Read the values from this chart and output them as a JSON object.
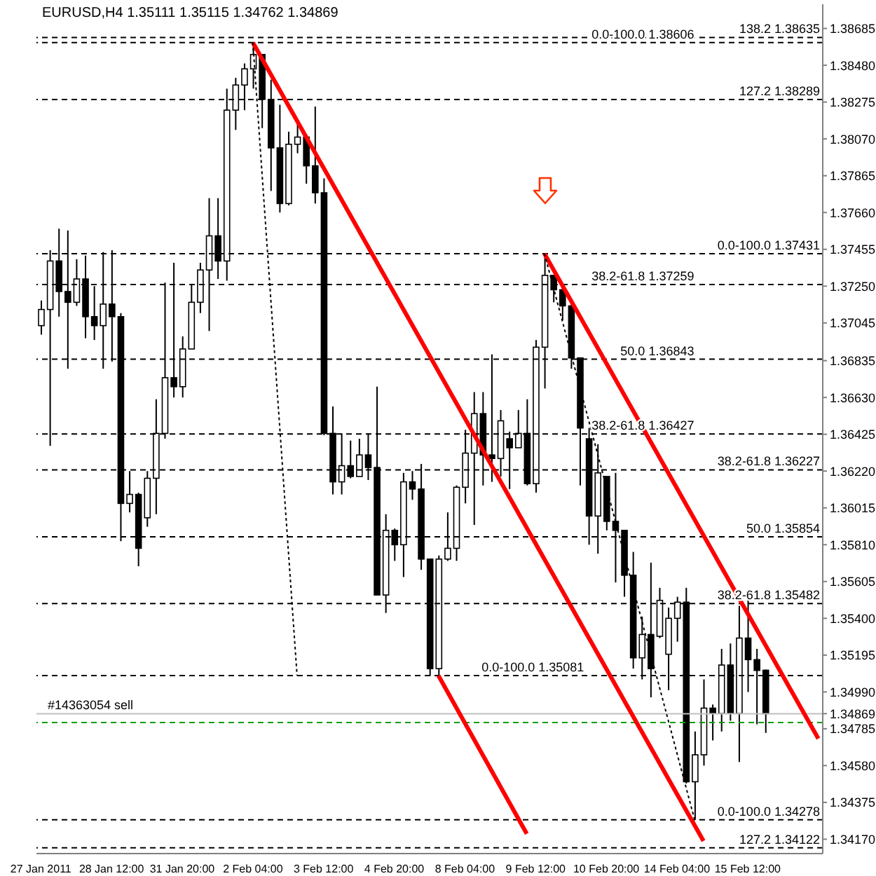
{
  "chart_data": {
    "type": "candlestick",
    "title": "EURUSD,H4 1.35111 1.35115 1.34762 1.34869",
    "color": "#000000",
    "categories": [
      "27 Jan 2011",
      null,
      null,
      null,
      null,
      null,
      null,
      null,
      "28 Jan 12:00",
      null,
      null,
      null,
      null,
      null,
      null,
      null,
      "31 Jan 20:00",
      null,
      null,
      null,
      null,
      null,
      null,
      null,
      "2 Feb 04:00",
      null,
      null,
      null,
      null,
      null,
      null,
      null,
      "3 Feb 12:00",
      null,
      null,
      null,
      null,
      null,
      null,
      null,
      "4 Feb 20:00",
      null,
      null,
      null,
      null,
      null,
      null,
      null,
      "8 Feb 04:00",
      null,
      null,
      null,
      null,
      null,
      null,
      null,
      "9 Feb 12:00",
      null,
      null,
      null,
      null,
      null,
      null,
      null,
      "10 Feb 20:00",
      null,
      null,
      null,
      null,
      null,
      null,
      null,
      "14 Feb 04:00",
      null,
      null,
      null,
      null,
      null,
      null,
      null,
      "15 Feb 12:00",
      null,
      null,
      null,
      null,
      null,
      null,
      null,
      null
    ],
    "ohlc": [
      [
        1.3703,
        1.3717,
        1.3698,
        1.3712
      ],
      [
        1.3712,
        1.3745,
        1.3636,
        1.3739
      ],
      [
        1.3739,
        1.3757,
        1.3708,
        1.3722
      ],
      [
        1.3722,
        1.3756,
        1.3679,
        1.3716
      ],
      [
        1.3716,
        1.374,
        1.3714,
        1.3729
      ],
      [
        1.3729,
        1.3742,
        1.3696,
        1.3708
      ],
      [
        1.3708,
        1.3725,
        1.3695,
        1.3703
      ],
      [
        1.3703,
        1.3744,
        1.3679,
        1.3715
      ],
      [
        1.3715,
        1.3745,
        1.3683,
        1.3708
      ],
      [
        1.3708,
        1.371,
        1.3583,
        1.3604
      ],
      [
        1.3604,
        1.3622,
        1.3599,
        1.3609
      ],
      [
        1.3609,
        1.361,
        1.3569,
        1.3579
      ],
      [
        1.3596,
        1.3622,
        1.3591,
        1.3618
      ],
      [
        1.3618,
        1.3662,
        1.3598,
        1.3643
      ],
      [
        1.3643,
        1.3727,
        1.364,
        1.3674
      ],
      [
        1.3674,
        1.3738,
        1.3663,
        1.3669
      ],
      [
        1.3669,
        1.3697,
        1.3663,
        1.369
      ],
      [
        1.369,
        1.3726,
        1.369,
        1.3716
      ],
      [
        1.3716,
        1.3738,
        1.371,
        1.3734
      ],
      [
        1.3734,
        1.3774,
        1.37,
        1.3753
      ],
      [
        1.3753,
        1.3774,
        1.3729,
        1.3739
      ],
      [
        1.3739,
        1.3835,
        1.3728,
        1.3823
      ],
      [
        1.3823,
        1.3841,
        1.3812,
        1.3837
      ],
      [
        1.3837,
        1.3849,
        1.3823,
        1.3846
      ],
      [
        1.3846,
        1.38606,
        1.3835,
        1.3854
      ],
      [
        1.3854,
        1.3854,
        1.3813,
        1.3829
      ],
      [
        1.3829,
        1.384,
        1.3778,
        1.3802
      ],
      [
        1.3802,
        1.3826,
        1.3766,
        1.3771
      ],
      [
        1.3771,
        1.3811,
        1.377,
        1.3804
      ],
      [
        1.3804,
        1.3816,
        1.3799,
        1.3808
      ],
      [
        1.3808,
        1.3809,
        1.3782,
        1.3792
      ],
      [
        1.3792,
        1.3825,
        1.3771,
        1.3777
      ],
      [
        1.3777,
        1.3785,
        1.3642,
        1.3643
      ],
      [
        1.3643,
        1.3658,
        1.3609,
        1.3616
      ],
      [
        1.3616,
        1.3643,
        1.3609,
        1.3625
      ],
      [
        1.3625,
        1.3639,
        1.3618,
        1.3619
      ],
      [
        1.3619,
        1.364,
        1.3619,
        1.3631
      ],
      [
        1.3631,
        1.3643,
        1.3617,
        1.3624
      ],
      [
        1.3624,
        1.3669,
        1.3553,
        1.3553
      ],
      [
        1.3553,
        1.3598,
        1.3543,
        1.3589
      ],
      [
        1.3589,
        1.359,
        1.3572,
        1.3581
      ],
      [
        1.3581,
        1.3621,
        1.3563,
        1.3616
      ],
      [
        1.3616,
        1.3622,
        1.3606,
        1.3612
      ],
      [
        1.3612,
        1.3626,
        1.3567,
        1.3573
      ],
      [
        1.3573,
        1.3573,
        1.3508,
        1.3512
      ],
      [
        1.3512,
        1.3575,
        1.35081,
        1.3573
      ],
      [
        1.3573,
        1.3599,
        1.3572,
        1.3579
      ],
      [
        1.3579,
        1.3614,
        1.3572,
        1.3613
      ],
      [
        1.3613,
        1.3645,
        1.3604,
        1.3632
      ],
      [
        1.3632,
        1.3666,
        1.3592,
        1.3654
      ],
      [
        1.3654,
        1.3666,
        1.3614,
        1.3631
      ],
      [
        1.3631,
        1.3687,
        1.3616,
        1.3629
      ],
      [
        1.3629,
        1.3656,
        1.3619,
        1.365
      ],
      [
        1.364,
        1.3644,
        1.3612,
        1.3635
      ],
      [
        1.3635,
        1.3656,
        1.3635,
        1.3643
      ],
      [
        1.3643,
        1.3662,
        1.3614,
        1.3615
      ],
      [
        1.3615,
        1.3695,
        1.361,
        1.3691
      ],
      [
        1.3691,
        1.37431,
        1.3668,
        1.3731
      ],
      [
        1.3731,
        1.3731,
        1.3716,
        1.3723
      ],
      [
        1.3723,
        1.3726,
        1.3706,
        1.3714
      ],
      [
        1.3714,
        1.3716,
        1.3679,
        1.3685
      ],
      [
        1.3685,
        1.3685,
        1.3614,
        1.3646
      ],
      [
        1.364,
        1.3646,
        1.3581,
        1.3597
      ],
      [
        1.3597,
        1.3637,
        1.3576,
        1.3621
      ],
      [
        1.3619,
        1.3619,
        1.3589,
        1.3594
      ],
      [
        1.3594,
        1.3621,
        1.356,
        1.3589
      ],
      [
        1.3589,
        1.3589,
        1.3552,
        1.3564
      ],
      [
        1.3564,
        1.3577,
        1.3512,
        1.3518
      ],
      [
        1.3518,
        1.3541,
        1.3506,
        1.3531
      ],
      [
        1.3531,
        1.3571,
        1.3496,
        1.3512
      ],
      [
        1.353,
        1.3557,
        1.3529,
        1.355
      ],
      [
        1.352,
        1.3546,
        1.35,
        1.354
      ],
      [
        1.354,
        1.3552,
        1.3527,
        1.3549
      ],
      [
        1.3549,
        1.3557,
        1.3448,
        1.3449
      ],
      [
        1.3449,
        1.3477,
        1.34278,
        1.3464
      ],
      [
        1.3464,
        1.3506,
        1.3458,
        1.349
      ],
      [
        1.349,
        1.3492,
        1.3472,
        1.3487
      ],
      [
        1.3487,
        1.3523,
        1.3477,
        1.3514
      ],
      [
        1.3514,
        1.3526,
        1.3483,
        1.3487
      ],
      [
        1.3487,
        1.3547,
        1.346,
        1.3529
      ],
      [
        1.3529,
        1.355,
        1.3499,
        1.3517
      ],
      [
        1.3517,
        1.3523,
        1.3481,
        1.3511
      ],
      [
        1.35111,
        1.35115,
        1.34762,
        1.34869
      ],
      null,
      null,
      null,
      null,
      null,
      null
    ],
    "series": [
      {
        "type": "line",
        "color": "#ff0000",
        "line_style": "solid",
        "values": [
          null,
          null,
          null,
          null,
          null,
          null,
          null,
          null,
          null,
          null,
          null,
          null,
          null,
          null,
          null,
          null,
          null,
          null,
          null,
          null,
          null,
          null,
          null,
          null,
          1.38606,
          null,
          null,
          null,
          null,
          null,
          null,
          null,
          null,
          null,
          null,
          null,
          null,
          null,
          null,
          null,
          null,
          null,
          null,
          null,
          null,
          null,
          null,
          null,
          null,
          null,
          null,
          null,
          null,
          null,
          null,
          null,
          null,
          null,
          null,
          null,
          null,
          null,
          null,
          null,
          null,
          null,
          null,
          null,
          null,
          null,
          null,
          null,
          null,
          null,
          null,
          1.3416,
          null,
          null,
          null,
          null,
          null,
          null,
          null,
          null,
          null,
          null,
          null,
          null,
          null
        ]
      },
      {
        "type": "line",
        "color": "#ff0000",
        "line_style": "solid",
        "values": [
          null,
          null,
          null,
          null,
          null,
          null,
          null,
          null,
          null,
          null,
          null,
          null,
          null,
          null,
          null,
          null,
          null,
          null,
          null,
          null,
          null,
          null,
          null,
          null,
          null,
          null,
          null,
          null,
          null,
          null,
          null,
          null,
          null,
          null,
          null,
          null,
          null,
          null,
          null,
          null,
          null,
          null,
          null,
          null,
          null,
          1.35081,
          null,
          null,
          null,
          null,
          null,
          null,
          null,
          null,
          null,
          1.342,
          null,
          null,
          null,
          null,
          null,
          null,
          null,
          null,
          null,
          null,
          null,
          null,
          null,
          null,
          null,
          null,
          null,
          null,
          null,
          null,
          null,
          null,
          null,
          null,
          null,
          null,
          null,
          null,
          null,
          null,
          null,
          null,
          null
        ]
      },
      {
        "type": "line",
        "color": "#ff0000",
        "line_style": "solid",
        "values": [
          null,
          null,
          null,
          null,
          null,
          null,
          null,
          null,
          null,
          null,
          null,
          null,
          null,
          null,
          null,
          null,
          null,
          null,
          null,
          null,
          null,
          null,
          null,
          null,
          null,
          null,
          null,
          null,
          null,
          null,
          null,
          null,
          null,
          null,
          null,
          null,
          null,
          null,
          null,
          null,
          null,
          null,
          null,
          null,
          null,
          null,
          null,
          null,
          null,
          null,
          null,
          null,
          null,
          null,
          null,
          null,
          null,
          1.37431,
          null,
          null,
          null,
          null,
          null,
          null,
          null,
          null,
          null,
          null,
          null,
          null,
          null,
          null,
          null,
          null,
          null,
          null,
          null,
          null,
          null,
          null,
          null,
          null,
          null,
          null,
          null,
          null,
          null,
          null,
          1.3473
        ]
      },
      {
        "type": "line",
        "color": "#000000",
        "line_style": "dotted",
        "values": [
          null,
          null,
          null,
          null,
          null,
          null,
          null,
          null,
          null,
          null,
          null,
          null,
          null,
          null,
          null,
          null,
          null,
          null,
          null,
          null,
          null,
          null,
          null,
          null,
          1.38606,
          null,
          null,
          null,
          null,
          1.35081,
          null,
          null,
          null,
          null,
          null,
          null,
          null,
          null,
          null,
          null,
          null,
          null,
          null,
          null,
          null,
          null,
          null,
          null,
          null,
          null,
          null,
          null,
          null,
          null,
          null,
          null,
          null,
          null,
          null,
          null,
          null,
          null,
          null,
          null,
          null,
          null,
          null,
          null,
          null,
          null,
          null,
          null,
          null,
          null,
          null,
          null,
          null,
          null,
          null,
          null,
          null,
          null,
          null,
          null,
          null,
          null,
          null,
          null,
          null
        ]
      },
      {
        "type": "line",
        "color": "#000000",
        "line_style": "dotted",
        "values": [
          null,
          null,
          null,
          null,
          null,
          null,
          null,
          null,
          null,
          null,
          null,
          null,
          null,
          null,
          null,
          null,
          null,
          null,
          null,
          null,
          null,
          null,
          null,
          null,
          null,
          null,
          null,
          null,
          null,
          null,
          null,
          null,
          null,
          null,
          null,
          null,
          null,
          null,
          null,
          null,
          null,
          null,
          null,
          null,
          null,
          null,
          null,
          null,
          null,
          null,
          null,
          null,
          null,
          null,
          null,
          null,
          null,
          1.37431,
          null,
          null,
          null,
          null,
          null,
          null,
          null,
          null,
          null,
          null,
          null,
          null,
          null,
          null,
          null,
          null,
          1.34278,
          null,
          null,
          null,
          null,
          null,
          null,
          null,
          null,
          null,
          null,
          null,
          null,
          null,
          null
        ]
      }
    ],
    "ylim": [
      1.3409,
      1.3882
    ],
    "yticks": [
      {
        "value": 1.3417,
        "label": "1.34170"
      },
      1.34375,
      {
        "value": 1.3458,
        "label": "1.34580"
      },
      1.34785,
      {
        "value": 1.34869,
        "label": "1.34869"
      },
      {
        "value": 1.3499,
        "label": "1.34990"
      },
      1.35195,
      {
        "value": 1.354,
        "label": "1.35400"
      },
      1.35605,
      {
        "value": 1.3581,
        "label": "1.35810"
      },
      1.36015,
      {
        "value": 1.3622,
        "label": "1.36220"
      },
      1.36425,
      {
        "value": 1.3663,
        "label": "1.36630"
      },
      1.36835,
      1.37045,
      {
        "value": 1.3725,
        "label": "1.37250"
      },
      1.37455,
      {
        "value": 1.3766,
        "label": "1.37660"
      },
      1.37865,
      {
        "value": 1.3807,
        "label": "1.38070"
      },
      1.38275,
      {
        "value": 1.3848,
        "label": "1.38480"
      },
      1.38685
    ],
    "ref_lines": [
      {
        "axis": "y",
        "value": 1.38635,
        "label": "138.2 1.38635"
      },
      {
        "axis": "y",
        "value": 1.38606,
        "label": "0.0-100.0 1.38606"
      },
      {
        "axis": "y",
        "value": 1.38289,
        "label": "127.2 1.38289"
      },
      {
        "axis": "y",
        "value": 1.37431,
        "label": "0.0-100.0 1.37431"
      },
      {
        "axis": "y",
        "value": 1.37259,
        "label": "38.2-61.8 1.37259"
      },
      {
        "axis": "y",
        "value": 1.36843,
        "label": "50.0 1.36843"
      },
      {
        "axis": "y",
        "value": 1.36427,
        "label": "38.2-61.8 1.36427"
      },
      {
        "axis": "y",
        "value": 1.36227,
        "label": "38.2-61.8 1.36227"
      },
      {
        "axis": "y",
        "value": 1.35854,
        "label": "50.0 1.35854"
      },
      {
        "axis": "y",
        "value": 1.35482,
        "label": "38.2-61.8 1.35482"
      },
      {
        "axis": "y",
        "value": 1.35081,
        "label": "0.0-100.0 1.35081"
      },
      {
        "axis": "y",
        "value": 1.34278,
        "label": "0.0-100.0 1.34278"
      },
      {
        "axis": "y",
        "value": 1.34122,
        "label": "127.2 1.34122"
      },
      {
        "axis": "y",
        "value": 1.34869,
        "label": "#14363054 sell",
        "color": "#c0c0c0",
        "line_style": "solid"
      },
      {
        "axis": "y",
        "value": 1.3482,
        "color": "#00a000",
        "line_style": "dashed"
      }
    ]
  }
}
